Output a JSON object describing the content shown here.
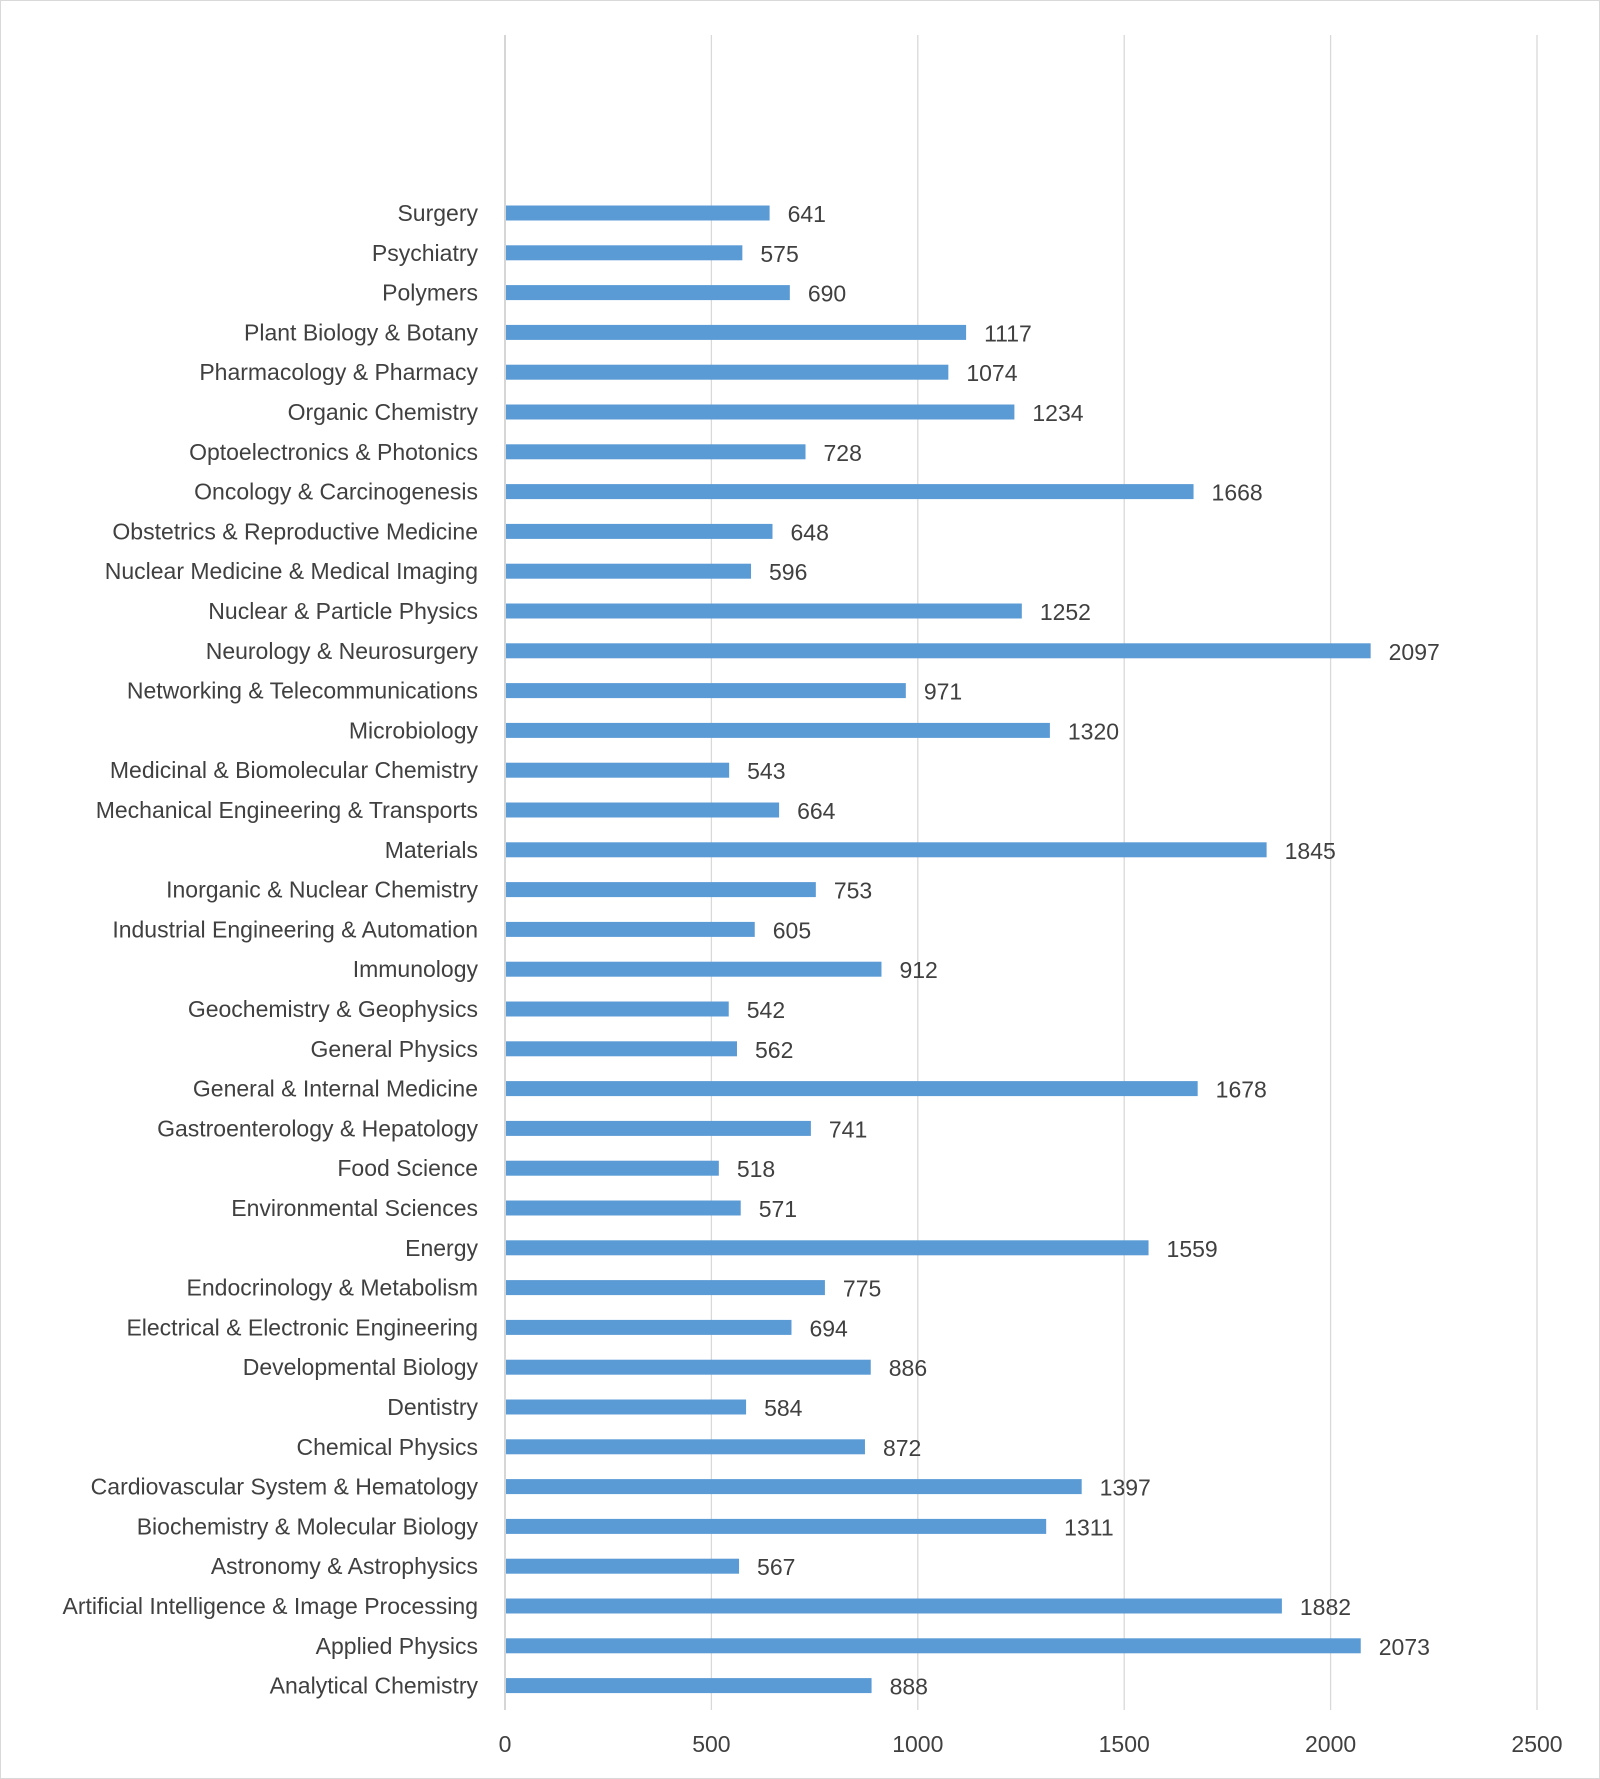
{
  "chart_data": {
    "type": "bar",
    "orientation": "horizontal",
    "title": "",
    "xlabel": "",
    "ylabel": "",
    "xlim": [
      0,
      2500
    ],
    "x_ticks": [
      0,
      500,
      1000,
      1500,
      2000,
      2500
    ],
    "grid": "vertical",
    "legend": "none",
    "bar_color": "#5b9bd5",
    "categories": [
      "Surgery",
      "Psychiatry",
      "Polymers",
      "Plant Biology & Botany",
      "Pharmacology & Pharmacy",
      "Organic Chemistry",
      "Optoelectronics & Photonics",
      "Oncology & Carcinogenesis",
      "Obstetrics & Reproductive Medicine",
      "Nuclear Medicine & Medical Imaging",
      "Nuclear & Particle Physics",
      "Neurology & Neurosurgery",
      "Networking & Telecommunications",
      "Microbiology",
      "Medicinal & Biomolecular Chemistry",
      "Mechanical Engineering & Transports",
      "Materials",
      "Inorganic & Nuclear Chemistry",
      "Industrial Engineering & Automation",
      "Immunology",
      "Geochemistry & Geophysics",
      "General Physics",
      "General & Internal Medicine",
      "Gastroenterology & Hepatology",
      "Food Science",
      "Environmental Sciences",
      "Energy",
      "Endocrinology & Metabolism",
      "Electrical & Electronic Engineering",
      "Developmental Biology",
      "Dentistry",
      "Chemical Physics",
      "Cardiovascular System & Hematology",
      "Biochemistry & Molecular Biology",
      "Astronomy & Astrophysics",
      "Artificial Intelligence & Image Processing",
      "Applied Physics",
      "Analytical Chemistry"
    ],
    "values": [
      641,
      575,
      690,
      1117,
      1074,
      1234,
      728,
      1668,
      648,
      596,
      1252,
      2097,
      971,
      1320,
      543,
      664,
      1845,
      753,
      605,
      912,
      542,
      562,
      1678,
      741,
      518,
      571,
      1559,
      775,
      694,
      886,
      584,
      872,
      1397,
      1311,
      567,
      1882,
      2073,
      888
    ]
  }
}
